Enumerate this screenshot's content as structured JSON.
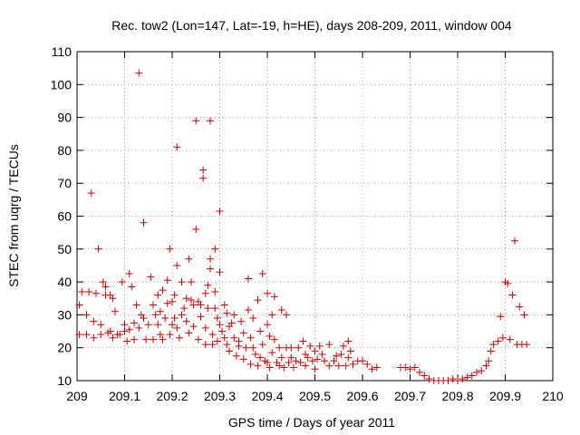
{
  "chart_data": {
    "type": "scatter",
    "title": "Rec. tow2 (Lon=147, Lat=-19, h=HE), days 208-209, 2011, window 004",
    "xlabel": "GPS time / Days of year 2011",
    "ylabel": "STEC from uqrg / TECUs",
    "xlim": [
      209,
      210
    ],
    "ylim": [
      10,
      110
    ],
    "xticks": [
      209,
      209.1,
      209.2,
      209.3,
      209.4,
      209.5,
      209.6,
      209.7,
      209.8,
      209.9,
      210
    ],
    "xtick_labels": [
      "209",
      "209.1",
      "209.2",
      "209.3",
      "209.4",
      "209.5",
      "209.6",
      "209.7",
      "209.8",
      "209.9",
      "210"
    ],
    "yticks": [
      10,
      20,
      30,
      40,
      50,
      60,
      70,
      80,
      90,
      100,
      110
    ],
    "ytick_labels": [
      "10",
      "20",
      "30",
      "40",
      "50",
      "60",
      "70",
      "80",
      "90",
      "100",
      "110"
    ],
    "grid": true,
    "marker": "plus",
    "color": "#cc0000",
    "points": [
      [
        209.005,
        24
      ],
      [
        209.005,
        33
      ],
      [
        209.01,
        37
      ],
      [
        209.02,
        24
      ],
      [
        209.02,
        30
      ],
      [
        209.025,
        37
      ],
      [
        209.03,
        67
      ],
      [
        209.035,
        28
      ],
      [
        209.035,
        23
      ],
      [
        209.04,
        36.5
      ],
      [
        209.045,
        50
      ],
      [
        209.05,
        24
      ],
      [
        209.05,
        27
      ],
      [
        209.055,
        40
      ],
      [
        209.06,
        36
      ],
      [
        209.06,
        38.5
      ],
      [
        209.065,
        24.5
      ],
      [
        209.07,
        25
      ],
      [
        209.07,
        36
      ],
      [
        209.075,
        23
      ],
      [
        209.075,
        35
      ],
      [
        209.08,
        31
      ],
      [
        209.085,
        24
      ],
      [
        209.09,
        24
      ],
      [
        209.095,
        40
      ],
      [
        209.1,
        27
      ],
      [
        209.1,
        25
      ],
      [
        209.105,
        22
      ],
      [
        209.11,
        42.5
      ],
      [
        209.11,
        25.5
      ],
      [
        209.115,
        38.5
      ],
      [
        209.12,
        27.5
      ],
      [
        209.12,
        22.5
      ],
      [
        209.125,
        33
      ],
      [
        209.13,
        26
      ],
      [
        209.13,
        103.5
      ],
      [
        209.135,
        30
      ],
      [
        209.14,
        58
      ],
      [
        209.14,
        29
      ],
      [
        209.145,
        22.5
      ],
      [
        209.15,
        27
      ],
      [
        209.155,
        41.5
      ],
      [
        209.16,
        22.5
      ],
      [
        209.16,
        33
      ],
      [
        209.165,
        30
      ],
      [
        209.17,
        27
      ],
      [
        209.17,
        36
      ],
      [
        209.175,
        31
      ],
      [
        209.175,
        24
      ],
      [
        209.18,
        22.5
      ],
      [
        209.18,
        37.5
      ],
      [
        209.185,
        29
      ],
      [
        209.19,
        40.5
      ],
      [
        209.19,
        33.5
      ],
      [
        209.195,
        50
      ],
      [
        209.195,
        24
      ],
      [
        209.2,
        34
      ],
      [
        209.2,
        27
      ],
      [
        209.205,
        36
      ],
      [
        209.205,
        29
      ],
      [
        209.21,
        81
      ],
      [
        209.21,
        45
      ],
      [
        209.21,
        26
      ],
      [
        209.215,
        23
      ],
      [
        209.22,
        30
      ],
      [
        209.22,
        40
      ],
      [
        209.225,
        32
      ],
      [
        209.23,
        35
      ],
      [
        209.23,
        28
      ],
      [
        209.235,
        47
      ],
      [
        209.235,
        24.5
      ],
      [
        209.24,
        34.5
      ],
      [
        209.24,
        40
      ],
      [
        209.245,
        33
      ],
      [
        209.245,
        26.5
      ],
      [
        209.25,
        89
      ],
      [
        209.25,
        56
      ],
      [
        209.255,
        34
      ],
      [
        209.255,
        22.5
      ],
      [
        209.26,
        33
      ],
      [
        209.26,
        29.5
      ],
      [
        209.265,
        74
      ],
      [
        209.265,
        71.5
      ],
      [
        209.27,
        36.5
      ],
      [
        209.27,
        26
      ],
      [
        209.27,
        21
      ],
      [
        209.275,
        39
      ],
      [
        209.275,
        32
      ],
      [
        209.28,
        89
      ],
      [
        209.28,
        47
      ],
      [
        209.28,
        44
      ],
      [
        209.285,
        24
      ],
      [
        209.285,
        21
      ],
      [
        209.29,
        50
      ],
      [
        209.29,
        37
      ],
      [
        209.29,
        32
      ],
      [
        209.295,
        29
      ],
      [
        209.295,
        22
      ],
      [
        209.3,
        61.5
      ],
      [
        209.3,
        43
      ],
      [
        209.3,
        27
      ],
      [
        209.305,
        25
      ],
      [
        209.31,
        33
      ],
      [
        209.31,
        23
      ],
      [
        209.315,
        30.5
      ],
      [
        209.315,
        21
      ],
      [
        209.32,
        26.5
      ],
      [
        209.32,
        19
      ],
      [
        209.325,
        27.5
      ],
      [
        209.33,
        30
      ],
      [
        209.33,
        23
      ],
      [
        209.335,
        17.5
      ],
      [
        209.34,
        22
      ],
      [
        209.34,
        20.5
      ],
      [
        209.345,
        28
      ],
      [
        209.35,
        24.5
      ],
      [
        209.35,
        16.5
      ],
      [
        209.355,
        20
      ],
      [
        209.36,
        41
      ],
      [
        209.36,
        31.5
      ],
      [
        209.365,
        23
      ],
      [
        209.365,
        15
      ],
      [
        209.37,
        20
      ],
      [
        209.37,
        29
      ],
      [
        209.375,
        18
      ],
      [
        209.38,
        34.5
      ],
      [
        209.38,
        14.5
      ],
      [
        209.385,
        25
      ],
      [
        209.385,
        17
      ],
      [
        209.39,
        42.5
      ],
      [
        209.39,
        21
      ],
      [
        209.395,
        16
      ],
      [
        209.4,
        36.5
      ],
      [
        209.4,
        27
      ],
      [
        209.4,
        15.5
      ],
      [
        209.405,
        23.5
      ],
      [
        209.405,
        14
      ],
      [
        209.41,
        18.5
      ],
      [
        209.41,
        30
      ],
      [
        209.415,
        35.5
      ],
      [
        209.415,
        22.5
      ],
      [
        209.42,
        15.5
      ],
      [
        209.425,
        14.5
      ],
      [
        209.425,
        20
      ],
      [
        209.43,
        31.5
      ],
      [
        209.43,
        17
      ],
      [
        209.435,
        14
      ],
      [
        209.44,
        30
      ],
      [
        209.44,
        20
      ],
      [
        209.445,
        15.5
      ],
      [
        209.45,
        17
      ],
      [
        209.45,
        20
      ],
      [
        209.455,
        14
      ],
      [
        209.46,
        16
      ],
      [
        209.465,
        20
      ],
      [
        209.47,
        15.5
      ],
      [
        209.475,
        22
      ],
      [
        209.48,
        14.5
      ],
      [
        209.48,
        18
      ],
      [
        209.485,
        17
      ],
      [
        209.49,
        20.5
      ],
      [
        209.495,
        16
      ],
      [
        209.5,
        19
      ],
      [
        209.5,
        13.5
      ],
      [
        209.505,
        16.5
      ],
      [
        209.51,
        20.5
      ],
      [
        209.515,
        18
      ],
      [
        209.52,
        16
      ],
      [
        209.53,
        21
      ],
      [
        209.53,
        14.5
      ],
      [
        209.54,
        16
      ],
      [
        209.545,
        17.5
      ],
      [
        209.55,
        14.5
      ],
      [
        209.555,
        18
      ],
      [
        209.56,
        20.5
      ],
      [
        209.565,
        14.5
      ],
      [
        209.57,
        22
      ],
      [
        209.57,
        17
      ],
      [
        209.575,
        19
      ],
      [
        209.58,
        15
      ],
      [
        209.59,
        16
      ],
      [
        209.6,
        16
      ],
      [
        209.61,
        15
      ],
      [
        209.62,
        13.5
      ],
      [
        209.63,
        14
      ],
      [
        209.68,
        14
      ],
      [
        209.69,
        14
      ],
      [
        209.7,
        13.5
      ],
      [
        209.71,
        14
      ],
      [
        209.72,
        12.5
      ],
      [
        209.73,
        11.5
      ],
      [
        209.74,
        10.5
      ],
      [
        209.75,
        10
      ],
      [
        209.76,
        10
      ],
      [
        209.77,
        10
      ],
      [
        209.78,
        10
      ],
      [
        209.79,
        10.5
      ],
      [
        209.8,
        10
      ],
      [
        209.81,
        10.5
      ],
      [
        209.82,
        11
      ],
      [
        209.83,
        11.5
      ],
      [
        209.84,
        12.5
      ],
      [
        209.85,
        13
      ],
      [
        209.86,
        14.5
      ],
      [
        209.865,
        16
      ],
      [
        209.87,
        19
      ],
      [
        209.875,
        21
      ],
      [
        209.885,
        22
      ],
      [
        209.89,
        29.5
      ],
      [
        209.895,
        23
      ],
      [
        209.9,
        40
      ],
      [
        209.905,
        39.5
      ],
      [
        209.91,
        22.5
      ],
      [
        209.915,
        36
      ],
      [
        209.92,
        52.5
      ],
      [
        209.925,
        21
      ],
      [
        209.93,
        32.5
      ],
      [
        209.935,
        21
      ],
      [
        209.94,
        30
      ],
      [
        209.945,
        21
      ]
    ]
  }
}
